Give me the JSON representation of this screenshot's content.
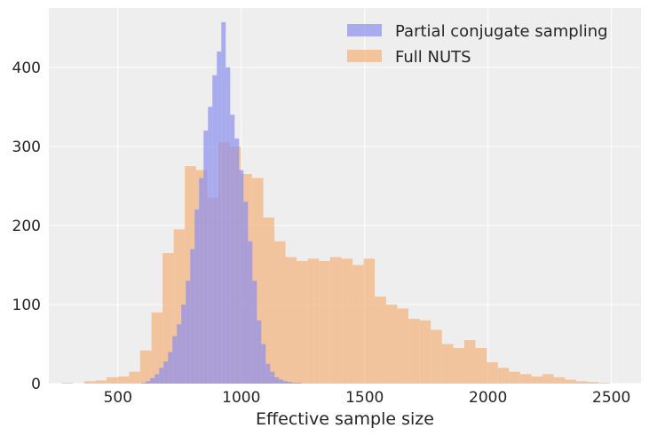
{
  "chart_data": {
    "type": "histogram",
    "xlabel": "Effective sample size",
    "ylabel": "",
    "xlim": [
      220,
      2620
    ],
    "ylim": [
      0,
      475
    ],
    "x_ticks": [
      500,
      1000,
      1500,
      2000,
      2500
    ],
    "y_ticks": [
      0,
      100,
      200,
      300,
      400
    ],
    "grid": true,
    "legend_position": "top-right",
    "series": [
      {
        "name": "Full NUTS",
        "color": "#f2b47e",
        "opacity": 0.72,
        "bin_edges": [
          273,
          318,
          364,
          409,
          454,
          500,
          545,
          590,
          636,
          681,
          726,
          771,
          817,
          862,
          907,
          953,
          998,
          1043,
          1089,
          1134,
          1179,
          1224,
          1270,
          1315,
          1360,
          1406,
          1451,
          1496,
          1541,
          1587,
          1632,
          1677,
          1723,
          1768,
          1813,
          1859,
          1904,
          1949,
          1995,
          2040,
          2085,
          2130,
          2176,
          2221,
          2266,
          2312,
          2357,
          2402,
          2447,
          2493
        ],
        "counts": [
          1,
          0,
          3,
          4,
          8,
          9,
          15,
          42,
          90,
          165,
          195,
          275,
          270,
          235,
          305,
          300,
          265,
          260,
          210,
          180,
          160,
          155,
          158,
          155,
          160,
          158,
          150,
          158,
          110,
          100,
          95,
          82,
          80,
          68,
          50,
          45,
          55,
          45,
          27,
          20,
          15,
          12,
          9,
          12,
          8,
          5,
          3,
          2,
          1
        ]
      },
      {
        "name": "Partial conjugate sampling",
        "color": "#8b8ff0",
        "opacity": 0.7,
        "bin_edges": [
          595,
          613,
          631,
          649,
          667,
          685,
          703,
          721,
          739,
          757,
          775,
          793,
          811,
          829,
          847,
          865,
          883,
          901,
          919,
          937,
          955,
          973,
          991,
          1009,
          1027,
          1045,
          1063,
          1081,
          1099,
          1117,
          1135,
          1153,
          1171,
          1189,
          1207,
          1225,
          1243,
          1261
        ],
        "counts": [
          1,
          3,
          7,
          12,
          20,
          28,
          40,
          60,
          75,
          100,
          130,
          170,
          220,
          260,
          320,
          350,
          390,
          420,
          457,
          400,
          340,
          310,
          270,
          230,
          180,
          130,
          80,
          50,
          25,
          15,
          8,
          5,
          3,
          2,
          1,
          1,
          0
        ]
      }
    ]
  }
}
